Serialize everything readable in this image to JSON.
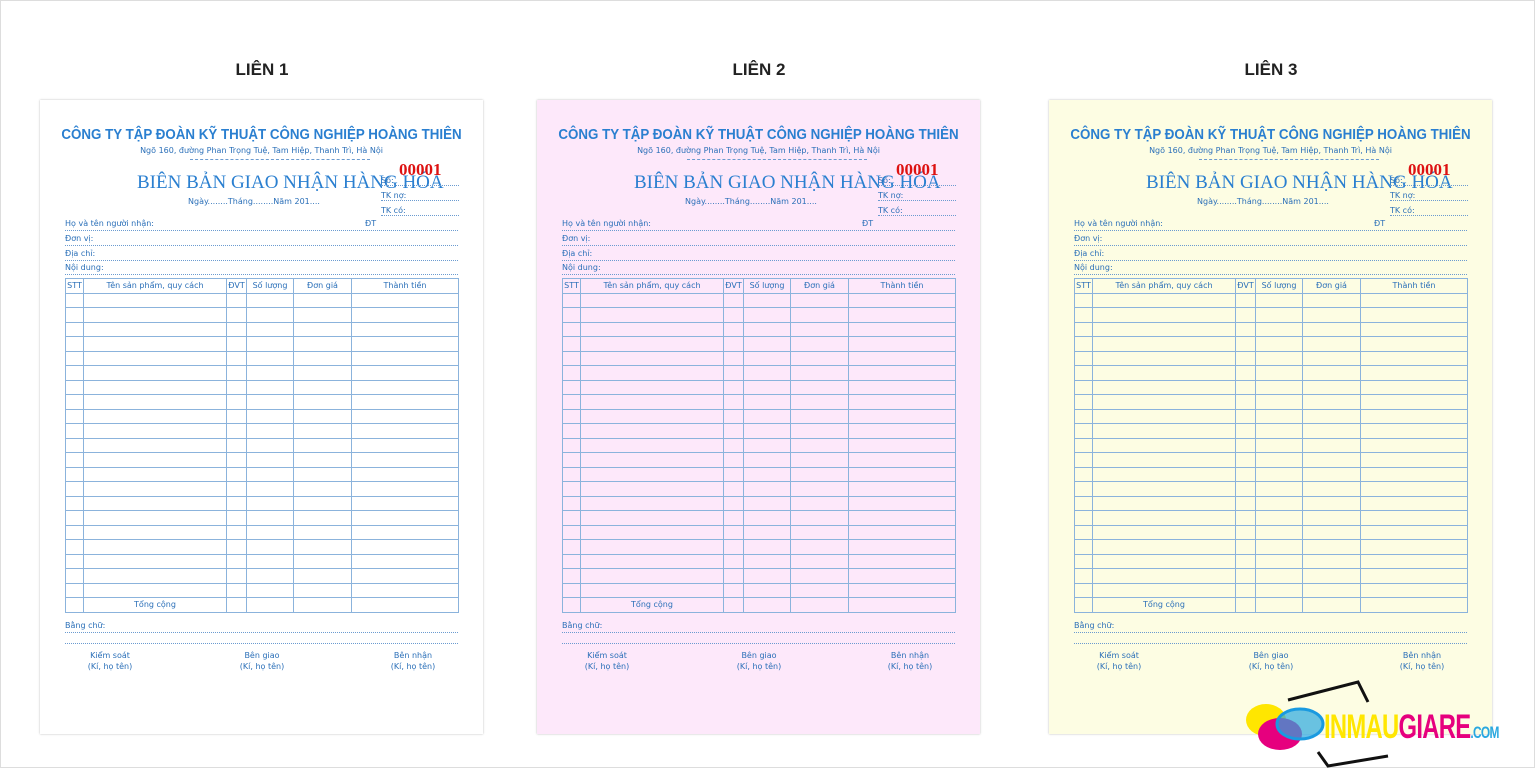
{
  "sheets": [
    {
      "label": "LIÊN 1",
      "bg": "#ffffff"
    },
    {
      "label": "LIÊN 2",
      "bg": "#fde8fa"
    },
    {
      "label": "LIÊN 3",
      "bg": "#fdfde3"
    }
  ],
  "form": {
    "company": "CÔNG TY TẬP ĐOÀN KỸ THUẬT CÔNG NGHIỆP HOÀNG THIÊN",
    "address": "Ngõ 160, đường Phan Trọng Tuệ, Tam Hiệp, Thanh Trì, Hà Nội",
    "title": "BIÊN BẢN GIAO NHẬN HÀNG HÓA",
    "date": "Ngày........Tháng........Năm 201....",
    "so": "Số:",
    "number": "00001",
    "tk_no": "TK nợ:",
    "tk_co": "TK có:",
    "recipient": "Họ và tên người nhận:",
    "phone": "ĐT",
    "unit": "Đơn vị:",
    "address_label": "Địa chỉ:",
    "content": "Nội dung:",
    "columns": [
      "STT",
      "Tên sản phẩm, quy cách",
      "ĐVT",
      "Số lượng",
      "Đơn giá",
      "Thành tiền"
    ],
    "total": "Tổng cộng",
    "in_words": "Bằng chữ:",
    "signatures": [
      {
        "role": "Kiểm soát",
        "note": "(Kí, họ tên)"
      },
      {
        "role": "Bên giao",
        "note": "(Kí, họ tên)"
      },
      {
        "role": "Bên nhận",
        "note": "(Kí, họ tên)"
      }
    ]
  },
  "logo": {
    "text1": "INMAU",
    "text2": "GIARE",
    "text3": ".COM",
    "colors": {
      "yellow": "#ffe600",
      "magenta": "#e6007e",
      "cyan": "#29a8e0"
    }
  }
}
